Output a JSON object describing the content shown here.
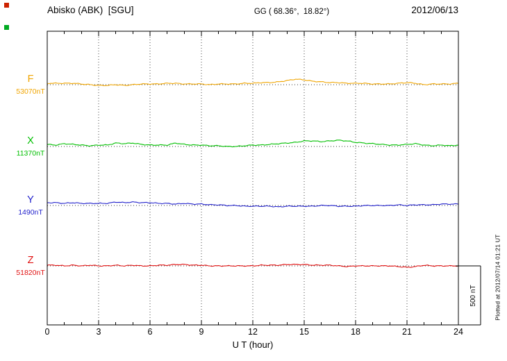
{
  "header": {
    "station": "Abisko (ABK)  [SGU]",
    "coords": "GG ( 68.36°,  18.82°)",
    "date": "2012/06/13"
  },
  "side_note": "Plotted at 2012/07/14 01:21 UT",
  "scale_bar": {
    "label": "500 nT",
    "nT": 500
  },
  "xaxis": {
    "label": "U T (hour)",
    "tick_labels": [
      "0",
      "3",
      "6",
      "9",
      "12",
      "15",
      "18",
      "21",
      "24"
    ],
    "tick_hours": [
      0,
      3,
      6,
      9,
      12,
      15,
      18,
      21,
      24
    ],
    "min": 0,
    "max": 24
  },
  "markers": [
    {
      "color": "#cc2200"
    },
    {
      "color": "#00aa22"
    }
  ],
  "chart_data": {
    "type": "line",
    "title": "Abisko (ABK) [SGU] magnetogram, 2012/06/13",
    "xlabel": "U T (hour)",
    "x_range": [
      0,
      24
    ],
    "grid": {
      "vertical_dotted_every_hours": 3,
      "horizontal_dotted_baselines": true
    },
    "scale_bar_nT": 500,
    "x_hours": [
      0,
      0.5,
      1,
      1.5,
      2,
      2.5,
      3,
      3.5,
      4,
      4.5,
      5,
      5.5,
      6,
      6.5,
      7,
      7.5,
      8,
      8.5,
      9,
      9.5,
      10,
      10.5,
      11,
      11.5,
      12,
      12.5,
      13,
      13.5,
      14,
      14.5,
      15,
      15.5,
      16,
      16.5,
      17,
      17.5,
      18,
      18.5,
      19,
      19.5,
      20,
      20.5,
      21,
      21.5,
      22,
      22.5,
      23,
      23.5,
      24
    ],
    "series": [
      {
        "name": "F",
        "color": "#f0a500",
        "baseline_label": "53070nT",
        "baseline_nT": 53070,
        "deviation_nT": [
          12,
          12,
          12,
          12,
          6,
          0,
          -6,
          -6,
          0,
          -6,
          0,
          6,
          6,
          6,
          12,
          12,
          6,
          6,
          6,
          0,
          6,
          6,
          6,
          12,
          12,
          18,
          18,
          24,
          35,
          47,
          41,
          29,
          24,
          18,
          18,
          12,
          12,
          12,
          6,
          6,
          6,
          12,
          18,
          12,
          0,
          6,
          6,
          6,
          12
        ]
      },
      {
        "name": "X",
        "color": "#00bf00",
        "baseline_label": "11370nT",
        "baseline_nT": 11370,
        "deviation_nT": [
          18,
          12,
          24,
          18,
          12,
          6,
          12,
          12,
          29,
          24,
          29,
          18,
          12,
          12,
          12,
          29,
          18,
          12,
          12,
          6,
          6,
          0,
          0,
          6,
          12,
          12,
          18,
          24,
          29,
          35,
          47,
          47,
          41,
          47,
          53,
          47,
          35,
          29,
          24,
          18,
          12,
          12,
          18,
          24,
          12,
          6,
          12,
          6,
          12
        ]
      },
      {
        "name": "Y",
        "color": "#2222cc",
        "baseline_label": "1490nT",
        "baseline_nT": 1490,
        "deviation_nT": [
          24,
          24,
          18,
          24,
          18,
          18,
          18,
          18,
          29,
          24,
          29,
          24,
          24,
          18,
          18,
          12,
          18,
          12,
          12,
          6,
          6,
          0,
          0,
          -6,
          -6,
          -6,
          -6,
          -12,
          -6,
          -6,
          -6,
          -6,
          0,
          0,
          -6,
          -6,
          -6,
          0,
          0,
          0,
          0,
          6,
          0,
          6,
          6,
          6,
          12,
          12,
          12
        ]
      },
      {
        "name": "Z",
        "color": "#e01010",
        "baseline_label": "51820nT",
        "baseline_nT": 51820,
        "deviation_nT": [
          6,
          6,
          0,
          6,
          0,
          6,
          0,
          0,
          6,
          0,
          6,
          0,
          0,
          6,
          6,
          12,
          12,
          6,
          6,
          0,
          0,
          0,
          0,
          0,
          0,
          6,
          6,
          6,
          12,
          12,
          12,
          6,
          6,
          6,
          0,
          -6,
          0,
          0,
          0,
          0,
          0,
          -6,
          -12,
          -6,
          6,
          0,
          0,
          0,
          0
        ]
      }
    ]
  }
}
